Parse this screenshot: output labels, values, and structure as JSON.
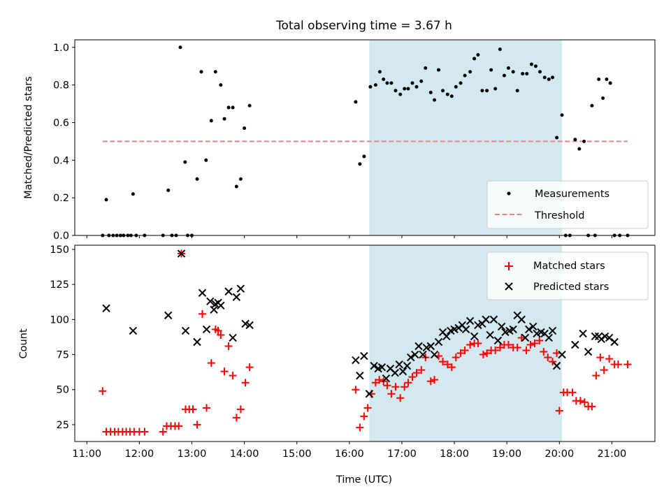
{
  "figure": {
    "title": "Total observing time = 3.67 h"
  },
  "chart_data": [
    {
      "type": "scatter",
      "ylabel": "Matched/Predicted stars",
      "xlim": [
        10.77,
        21.82
      ],
      "ylim": [
        0.0,
        1.04
      ],
      "yticks": [
        0.0,
        0.2,
        0.4,
        0.6,
        0.8,
        1.0
      ],
      "ytick_labels": [
        "0.0",
        "0.2",
        "0.4",
        "0.6",
        "0.8",
        "1.0"
      ],
      "legend": {
        "placement": "lower-right",
        "entries": [
          "Measurements",
          "Threshold"
        ]
      },
      "shaded_span": {
        "x": [
          16.38,
          20.05
        ],
        "color": "#d3e9ef"
      },
      "threshold": {
        "name": "Threshold",
        "value": 0.5,
        "x": [
          11.3,
          21.3
        ],
        "color": "#f08080"
      },
      "series": [
        {
          "name": "Measurements",
          "color": "#000000",
          "x": [
            11.3,
            11.37,
            11.42,
            11.5,
            11.57,
            11.64,
            11.7,
            11.78,
            11.84,
            11.88,
            11.94,
            12.1,
            12.45,
            12.55,
            12.62,
            12.7,
            12.78,
            12.87,
            12.92,
            13.0,
            13.1,
            13.18,
            13.27,
            13.37,
            13.45,
            13.55,
            13.62,
            13.7,
            13.78,
            13.85,
            13.93,
            14.0,
            14.1,
            16.12,
            16.2,
            16.28,
            16.4,
            16.5,
            16.58,
            16.65,
            16.72,
            16.8,
            16.88,
            16.97,
            17.05,
            17.12,
            17.2,
            17.28,
            17.37,
            17.45,
            17.55,
            17.62,
            17.7,
            17.78,
            17.87,
            17.95,
            18.03,
            18.12,
            18.2,
            18.3,
            18.38,
            18.45,
            18.53,
            18.62,
            18.7,
            18.78,
            18.87,
            18.95,
            19.03,
            19.12,
            19.2,
            19.3,
            19.38,
            19.47,
            19.55,
            19.63,
            19.72,
            19.8,
            19.87,
            19.95,
            20.05,
            20.12,
            20.2,
            20.3,
            20.38,
            20.47,
            20.55,
            20.62,
            20.68,
            20.75,
            20.83,
            20.9,
            20.97,
            21.05,
            21.15,
            21.3
          ],
          "y": [
            0.0,
            0.19,
            0.0,
            0.0,
            0.0,
            0.0,
            0.0,
            0.0,
            0.0,
            0.22,
            0.0,
            0.0,
            0.0,
            0.24,
            0.0,
            0.0,
            1.0,
            0.39,
            0.0,
            0.0,
            0.3,
            0.87,
            0.4,
            0.61,
            0.87,
            0.8,
            0.62,
            0.68,
            0.68,
            0.26,
            0.3,
            0.57,
            0.69,
            0.71,
            0.38,
            0.42,
            0.79,
            0.8,
            0.87,
            0.83,
            0.81,
            0.81,
            0.77,
            0.75,
            0.78,
            0.78,
            0.81,
            0.79,
            0.82,
            0.89,
            0.76,
            0.72,
            0.88,
            0.77,
            0.75,
            0.74,
            0.79,
            0.81,
            0.85,
            0.87,
            0.94,
            0.96,
            0.77,
            0.77,
            0.88,
            0.78,
            0.99,
            0.85,
            0.89,
            0.87,
            0.77,
            0.86,
            0.86,
            0.91,
            0.9,
            0.87,
            0.84,
            0.83,
            0.84,
            0.52,
            0.64,
            0.0,
            0.0,
            0.51,
            0.46,
            0.5,
            0.0,
            0.69,
            0.0,
            0.83,
            0.73,
            0.83,
            0.81,
            0.0,
            0.0,
            0.0
          ]
        }
      ]
    },
    {
      "type": "scatter",
      "xlabel": "Time (UTC)",
      "ylabel": "Count",
      "xlim": [
        10.77,
        21.82
      ],
      "ylim": [
        13,
        153
      ],
      "xticks": [
        11,
        12,
        13,
        14,
        15,
        16,
        17,
        18,
        19,
        20,
        21
      ],
      "xtick_labels": [
        "11:00",
        "12:00",
        "13:00",
        "14:00",
        "15:00",
        "16:00",
        "17:00",
        "18:00",
        "19:00",
        "20:00",
        "21:00"
      ],
      "yticks": [
        25,
        50,
        75,
        100,
        125,
        150
      ],
      "ytick_labels": [
        "25",
        "50",
        "75",
        "100",
        "125",
        "150"
      ],
      "legend": {
        "placement": "top-right",
        "entries": [
          "Matched stars",
          "Predicted stars"
        ]
      },
      "shaded_span": {
        "x": [
          16.38,
          20.05
        ],
        "color": "#d3e9ef"
      },
      "series": [
        {
          "name": "Matched stars",
          "marker": "plus",
          "color": "#ff0000",
          "x": [
            11.3,
            11.37,
            11.45,
            11.53,
            11.6,
            11.68,
            11.75,
            11.82,
            11.9,
            12.0,
            12.1,
            12.45,
            12.52,
            12.6,
            12.68,
            12.75,
            12.8,
            12.88,
            12.95,
            13.02,
            13.1,
            13.2,
            13.28,
            13.37,
            13.45,
            13.5,
            13.55,
            13.62,
            13.7,
            13.78,
            13.85,
            13.93,
            14.02,
            14.1,
            16.12,
            16.2,
            16.28,
            16.35,
            16.42,
            16.5,
            16.57,
            16.65,
            16.72,
            16.8,
            16.88,
            16.97,
            17.05,
            17.12,
            17.2,
            17.28,
            17.37,
            17.45,
            17.55,
            17.62,
            17.7,
            17.78,
            17.87,
            17.95,
            18.03,
            18.12,
            18.2,
            18.3,
            18.38,
            18.45,
            18.55,
            18.62,
            18.7,
            18.78,
            18.87,
            18.95,
            19.03,
            19.12,
            19.2,
            19.28,
            19.37,
            19.45,
            19.53,
            19.62,
            19.7,
            19.78,
            19.87,
            19.95,
            20.0,
            20.08,
            20.15,
            20.25,
            20.32,
            20.4,
            20.48,
            20.55,
            20.62,
            20.7,
            20.78,
            20.85,
            20.95,
            21.05,
            21.12,
            21.3
          ],
          "y": [
            49,
            20,
            20,
            20,
            20,
            20,
            20,
            20,
            20,
            20,
            20,
            20,
            24,
            24,
            24,
            24,
            147,
            36,
            36,
            36,
            25,
            104,
            37,
            69,
            93,
            92,
            89,
            63,
            81,
            60,
            30,
            36,
            55,
            66,
            50,
            23,
            31,
            37,
            47,
            55,
            57,
            56,
            53,
            47,
            52,
            44,
            52,
            55,
            59,
            62,
            64,
            73,
            56,
            57,
            74,
            70,
            68,
            66,
            73,
            76,
            78,
            82,
            83,
            83,
            75,
            76,
            78,
            78,
            80,
            82,
            82,
            80,
            80,
            87,
            78,
            82,
            83,
            85,
            77,
            73,
            70,
            76,
            35,
            48,
            48,
            48,
            42,
            42,
            41,
            38,
            38,
            60,
            73,
            64,
            72,
            68,
            68,
            68
          ]
        },
        {
          "name": "Predicted stars",
          "marker": "x",
          "color": "#000000",
          "x": [
            11.37,
            11.88,
            12.55,
            12.8,
            12.88,
            13.1,
            13.2,
            13.28,
            13.35,
            13.42,
            13.45,
            13.5,
            13.55,
            13.7,
            13.78,
            13.85,
            13.93,
            14.02,
            14.1,
            16.12,
            16.2,
            16.28,
            16.38,
            16.47,
            16.55,
            16.62,
            16.7,
            16.78,
            16.87,
            16.95,
            17.02,
            17.1,
            17.17,
            17.25,
            17.32,
            17.4,
            17.47,
            17.55,
            17.62,
            17.7,
            17.78,
            17.85,
            17.93,
            18.0,
            18.08,
            18.15,
            18.22,
            18.3,
            18.38,
            18.45,
            18.53,
            18.6,
            18.68,
            18.75,
            18.83,
            18.9,
            18.97,
            19.05,
            19.12,
            19.2,
            19.28,
            19.35,
            19.42,
            19.5,
            19.57,
            19.65,
            19.72,
            19.8,
            19.87,
            19.95,
            20.05,
            20.3,
            20.45,
            20.55,
            20.68,
            20.75,
            20.8,
            20.87,
            20.95,
            21.05
          ],
          "y": [
            108,
            92,
            103,
            147,
            92,
            84,
            119,
            93,
            113,
            107,
            111,
            112,
            110,
            120,
            87,
            116,
            122,
            97,
            96,
            71,
            60,
            74,
            47,
            67,
            65,
            66,
            58,
            65,
            62,
            68,
            63,
            67,
            73,
            75,
            81,
            75,
            80,
            81,
            75,
            84,
            91,
            88,
            92,
            93,
            94,
            96,
            93,
            99,
            88,
            96,
            97,
            100,
            89,
            100,
            85,
            95,
            91,
            92,
            93,
            103,
            100,
            87,
            93,
            95,
            90,
            91,
            90,
            87,
            92,
            67,
            75,
            82,
            90,
            77,
            88,
            88,
            86,
            88,
            87,
            84
          ]
        }
      ]
    }
  ]
}
